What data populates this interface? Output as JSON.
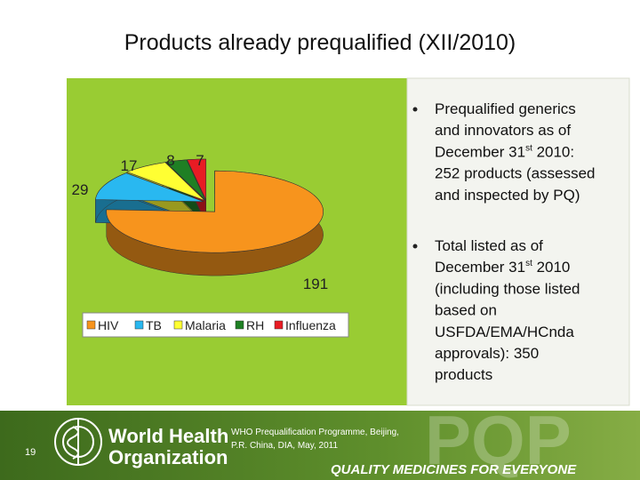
{
  "title": "Products already prequalified (XII/2010)",
  "chart_data": {
    "type": "pie3d",
    "categories": [
      "HIV",
      "TB",
      "Malaria",
      "RH",
      "Influenza"
    ],
    "values": [
      191,
      29,
      17,
      8,
      7
    ],
    "colors": [
      "#f7941d",
      "#29b8f0",
      "#ffff33",
      "#1f7f24",
      "#e81c24"
    ],
    "legend": "bottom"
  },
  "bullets": [
    {
      "lines": [
        "Prequalified generics",
        "and innovators as of",
        {
          "text": "December 31",
          "sup": "st",
          "rest": " 2010:"
        },
        "252 products (assessed",
        "and inspected by PQ)"
      ]
    },
    {
      "lines": [
        "Total listed as of",
        {
          "text": "December 31",
          "sup": "st",
          "rest": " 2010"
        },
        "(including those listed",
        "based on",
        "USFDA/EMA/HCnda",
        "approvals): 350",
        "products"
      ]
    }
  ],
  "footer": {
    "page": "19",
    "org": [
      "World Health",
      "Organization"
    ],
    "note": [
      "WHO Prequalification Programme, Beijing,",
      "P.R. China, DIA, May, 2011"
    ],
    "brand": "PQP",
    "slogan": "QUALITY MEDICINES FOR EVERYONE"
  }
}
